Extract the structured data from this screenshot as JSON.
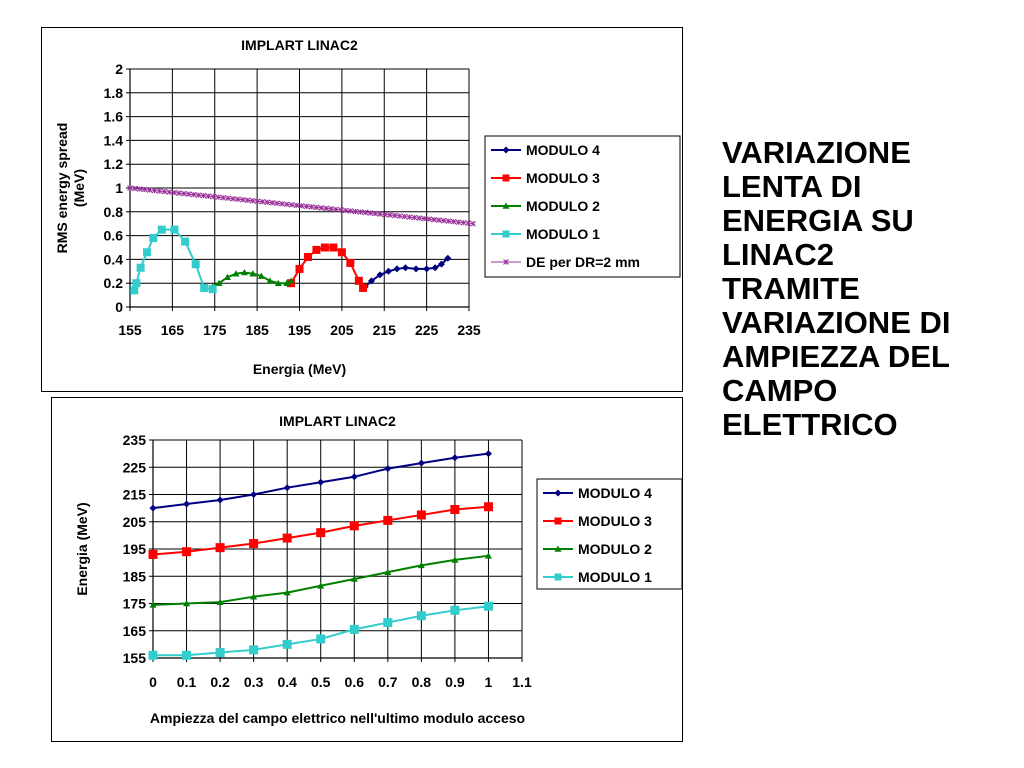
{
  "side_text": [
    "VARIAZIONE",
    "LENTA DI",
    "ENERGIA SU",
    "LINAC2",
    "TRAMITE",
    "VARIAZIONE DI",
    "AMPIEZZA DEL",
    "CAMPO",
    "ELETTRICO"
  ],
  "chart_data": [
    {
      "type": "line",
      "title": "IMPLART LINAC2",
      "xlabel": "Energia (MeV)",
      "ylabel_lines": [
        "RMS energy spread",
        "(MeV)"
      ],
      "xlim": [
        155,
        235
      ],
      "ylim": [
        0,
        2
      ],
      "x_ticks": [
        "155",
        "165",
        "175",
        "185",
        "195",
        "205",
        "215",
        "225",
        "235"
      ],
      "y_ticks": [
        "0",
        "0.2",
        "0.4",
        "0.6",
        "0.8",
        "1",
        "1.2",
        "1.4",
        "1.6",
        "1.8",
        "2"
      ],
      "grid": true,
      "legend_position": "right",
      "series": [
        {
          "name": "MODULO 4",
          "color": "#000080",
          "marker": "diamond",
          "x": [
            210.5,
            212,
            214,
            216,
            218,
            220,
            222.5,
            225,
            227,
            228.5,
            230
          ],
          "y": [
            0.17,
            0.22,
            0.27,
            0.3,
            0.32,
            0.33,
            0.32,
            0.32,
            0.33,
            0.36,
            0.41
          ]
        },
        {
          "name": "MODULO 3",
          "color": "#ff0000",
          "marker": "square",
          "x": [
            193,
            195,
            197,
            199,
            201,
            203,
            205,
            207,
            209,
            210
          ],
          "y": [
            0.2,
            0.32,
            0.42,
            0.48,
            0.5,
            0.5,
            0.46,
            0.37,
            0.22,
            0.16
          ]
        },
        {
          "name": "MODULO 2",
          "color": "#008000",
          "marker": "triangle",
          "x": [
            174.5,
            176,
            178,
            180,
            182,
            184,
            186,
            188,
            190,
            192,
            193
          ],
          "y": [
            0.17,
            0.2,
            0.25,
            0.28,
            0.29,
            0.28,
            0.26,
            0.22,
            0.2,
            0.2,
            0.22
          ]
        },
        {
          "name": "MODULO 1",
          "color": "#33cccc",
          "marker": "square",
          "x": [
            156,
            156.5,
            157.5,
            159,
            160.5,
            162.5,
            165.5,
            168,
            170.5,
            172.5,
            174.5
          ],
          "y": [
            0.14,
            0.2,
            0.33,
            0.46,
            0.58,
            0.65,
            0.65,
            0.55,
            0.36,
            0.16,
            0.15
          ]
        },
        {
          "name": "DE per DR=2 mm",
          "color": "#993399",
          "marker": "star",
          "x_range": [
            155,
            236
          ],
          "y_range": [
            1.0,
            0.7
          ]
        }
      ]
    },
    {
      "type": "line",
      "title": "IMPLART LINAC2",
      "xlabel": "Ampiezza del campo elettrico nell'ultimo modulo acceso",
      "ylabel": "Energia (MeV)",
      "xlim": [
        0,
        1.1
      ],
      "ylim": [
        155,
        235
      ],
      "x_ticks": [
        "0",
        "0.1",
        "0.2",
        "0.3",
        "0.4",
        "0.5",
        "0.6",
        "0.7",
        "0.8",
        "0.9",
        "1",
        "1.1"
      ],
      "y_ticks": [
        "155",
        "165",
        "175",
        "185",
        "195",
        "205",
        "215",
        "225",
        "235"
      ],
      "grid": true,
      "legend_position": "right",
      "x": [
        0,
        0.1,
        0.2,
        0.3,
        0.4,
        0.5,
        0.6,
        0.7,
        0.8,
        0.9,
        1.0
      ],
      "series": [
        {
          "name": "MODULO 4",
          "color": "#000080",
          "marker": "diamond",
          "values": [
            210,
            211.5,
            213,
            215,
            217.5,
            219.5,
            221.5,
            224.5,
            226.5,
            228.5,
            230
          ]
        },
        {
          "name": "MODULO 3",
          "color": "#ff0000",
          "marker": "square",
          "values": [
            193,
            194,
            195.5,
            197,
            199,
            201,
            203.5,
            205.5,
            207.5,
            209.5,
            210.5
          ]
        },
        {
          "name": "MODULO 2",
          "color": "#008000",
          "marker": "triangle",
          "values": [
            174.5,
            175,
            175.5,
            177.5,
            179,
            181.5,
            184,
            186.5,
            189,
            191,
            192.5
          ]
        },
        {
          "name": "MODULO 1",
          "color": "#33cccc",
          "marker": "square",
          "values": [
            156,
            156,
            157,
            158,
            160,
            162,
            165.5,
            168,
            170.5,
            172.5,
            174
          ]
        }
      ]
    }
  ]
}
